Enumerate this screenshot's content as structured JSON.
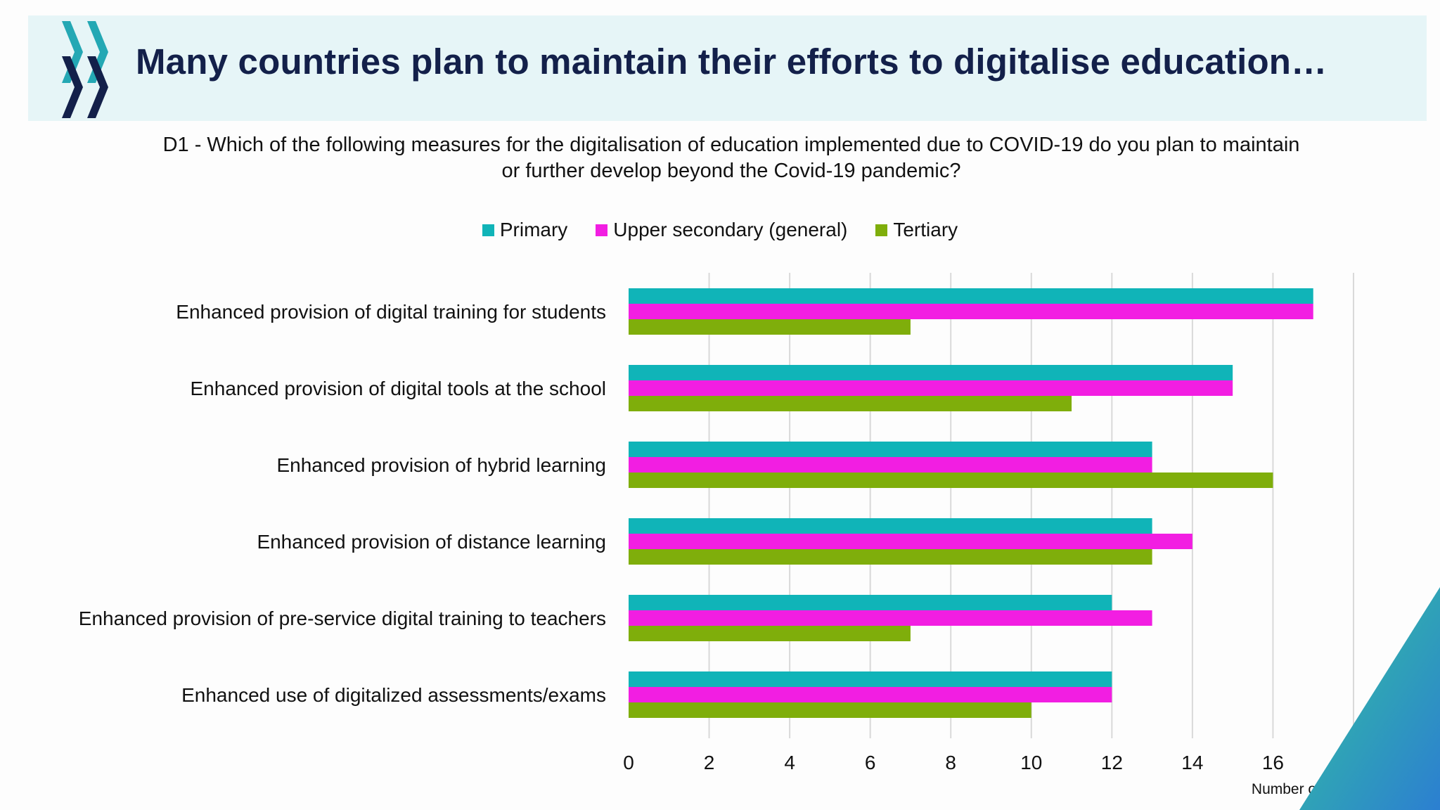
{
  "header": {
    "title": "Many countries plan to maintain their efforts to digitalise education…",
    "logo_icon": "oecd-chevrons-icon"
  },
  "question": {
    "line1": "D1 -  Which of the following measures for the digitalisation of education implemented due to COVID-19  do you plan to maintain",
    "line2": "or further develop beyond the Covid-19 pandemic?"
  },
  "colors": {
    "primary": "#10b4b8",
    "upper_secondary": "#f21ee2",
    "tertiary": "#7fae0b",
    "title": "#13204a",
    "header_band": "#e6f5f7"
  },
  "chart_data": {
    "type": "bar",
    "orientation": "horizontal",
    "categories": [
      "Enhanced provision of digital training for students",
      "Enhanced provision of digital tools at the school",
      "Enhanced provision of hybrid learning",
      "Enhanced provision of distance learning",
      "Enhanced provision of pre-service digital training to teachers",
      "Enhanced use of digitalized assessments/exams"
    ],
    "series": [
      {
        "name": "Primary",
        "color": "#10b4b8",
        "values": [
          17,
          15,
          13,
          13,
          12,
          12
        ]
      },
      {
        "name": "Upper secondary (general)",
        "color": "#f21ee2",
        "values": [
          17,
          15,
          13,
          14,
          13,
          12
        ]
      },
      {
        "name": "Tertiary",
        "color": "#7fae0b",
        "values": [
          7,
          11,
          16,
          13,
          7,
          10
        ]
      }
    ],
    "xlim": [
      0,
      18
    ],
    "xticks": [
      0,
      2,
      4,
      6,
      8,
      10,
      12,
      14,
      16,
      18
    ],
    "xlabel": "Number of countries",
    "ylabel": "",
    "grid": "vertical",
    "legend_position": "top"
  }
}
